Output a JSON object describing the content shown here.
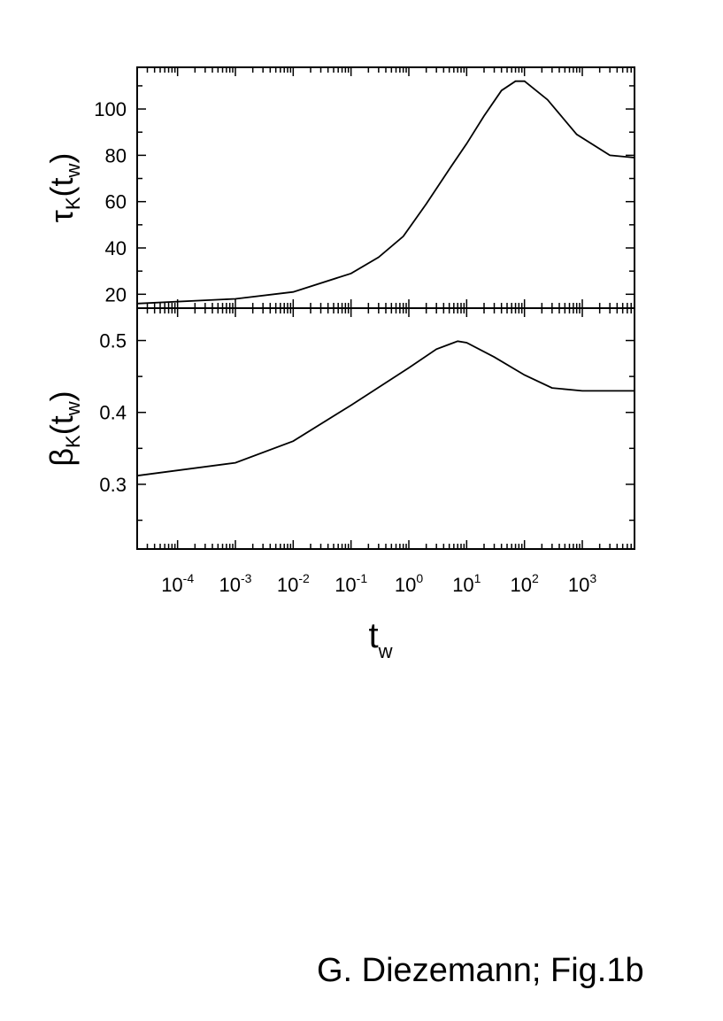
{
  "chart_data": [
    {
      "type": "line",
      "xscale": "log",
      "xlim": [
        2e-05,
        8000
      ],
      "ylim": [
        14,
        118
      ],
      "yticks": [
        20,
        40,
        60,
        80,
        100
      ],
      "ylabel": {
        "main": "τ",
        "sub": "K",
        "arg_main": "t",
        "arg_sub": "w"
      },
      "series": [
        {
          "x": [
            2e-05,
            0.001,
            0.01,
            0.1,
            0.3,
            0.8,
            2,
            5,
            10,
            20,
            40,
            70,
            100,
            250,
            800,
            3000,
            8000
          ],
          "y": [
            16,
            18,
            21,
            29,
            36,
            45,
            59,
            74,
            85,
            97,
            108,
            112,
            112,
            104,
            89,
            80,
            79
          ]
        }
      ]
    },
    {
      "type": "line",
      "xscale": "log",
      "xlim": [
        2e-05,
        8000
      ],
      "ylim": [
        0.21,
        0.545
      ],
      "yticks": [
        0.3,
        0.4,
        0.5
      ],
      "ylabel": {
        "main": "β",
        "sub": "K",
        "arg_main": "t",
        "arg_sub": "w"
      },
      "xlabel": {
        "main": "t",
        "sub": "w"
      },
      "xticks": [
        0.0001,
        0.001,
        0.01,
        0.1,
        1,
        10,
        100,
        1000
      ],
      "xtick_labels": [
        {
          "base": "10",
          "exp": "-4"
        },
        {
          "base": "10",
          "exp": "-3"
        },
        {
          "base": "10",
          "exp": "-2"
        },
        {
          "base": "10",
          "exp": "-1"
        },
        {
          "base": "10",
          "exp": "0"
        },
        {
          "base": "10",
          "exp": "1"
        },
        {
          "base": "10",
          "exp": "2"
        },
        {
          "base": "10",
          "exp": "3"
        }
      ],
      "series": [
        {
          "x": [
            2e-05,
            0.001,
            0.01,
            0.1,
            1,
            3,
            7,
            10,
            30,
            100,
            300,
            1000,
            8000
          ],
          "y": [
            0.312,
            0.33,
            0.36,
            0.41,
            0.462,
            0.488,
            0.499,
            0.497,
            0.477,
            0.452,
            0.434,
            0.43,
            0.43
          ]
        }
      ]
    }
  ],
  "caption": "G. Diezemann; Fig.1b"
}
